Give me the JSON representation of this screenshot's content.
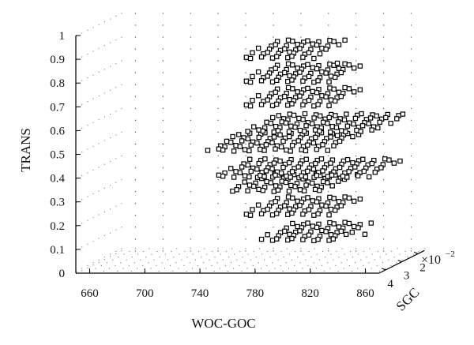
{
  "chart_data": {
    "type": "scatter",
    "projection": "3d",
    "title": "",
    "xlabel": "WOC-GOC",
    "ylabel": "TRANS",
    "zlabel": "SGC",
    "z_multiplier_label": "×10",
    "z_multiplier_exp": "−2",
    "xlim": [
      650,
      870
    ],
    "ylim": [
      0,
      1
    ],
    "zlim": [
      1.6,
      4.4
    ],
    "x_ticks": [
      "660",
      "700",
      "740",
      "780",
      "820",
      "860"
    ],
    "y_ticks": [
      "0",
      "0.1",
      "0.2",
      "0.3",
      "0.4",
      "0.5",
      "0.6",
      "0.7",
      "0.8",
      "0.9",
      "1"
    ],
    "z_ticks": [
      "4",
      "3",
      "2"
    ],
    "grid": true,
    "marker": "square",
    "series": [
      {
        "points": [
          {
            "x0": 780,
            "x1": 835,
            "y": 0.123,
            "z": [
              2,
              4
            ]
          },
          {
            "x0": 768,
            "x1": 830,
            "y": 0.23,
            "z": [
              2,
              4
            ]
          },
          {
            "x0": 758,
            "x1": 828,
            "y": 0.33,
            "z": [
              2,
              4
            ]
          },
          {
            "x0": 748,
            "x1": 860,
            "y": 0.39,
            "z": [
              2,
              4
            ]
          },
          {
            "x0": 742,
            "x1": 830,
            "y": 0.5,
            "z": [
              2,
              4
            ]
          },
          {
            "x0": 770,
            "x1": 862,
            "y": 0.58,
            "z": [
              2,
              4
            ]
          },
          {
            "x0": 768,
            "x1": 830,
            "y": 0.69,
            "z": [
              2,
              4
            ]
          },
          {
            "x0": 768,
            "x1": 830,
            "y": 0.79,
            "z": [
              2,
              4
            ]
          },
          {
            "x0": 768,
            "x1": 820,
            "y": 0.89,
            "z": [
              2,
              4
            ]
          }
        ],
        "outliers": [
          {
            "x": 855,
            "y": 0.15
          },
          {
            "x": 835,
            "y": 0.87
          },
          {
            "x": 835,
            "y": 0.565
          }
        ]
      }
    ]
  }
}
